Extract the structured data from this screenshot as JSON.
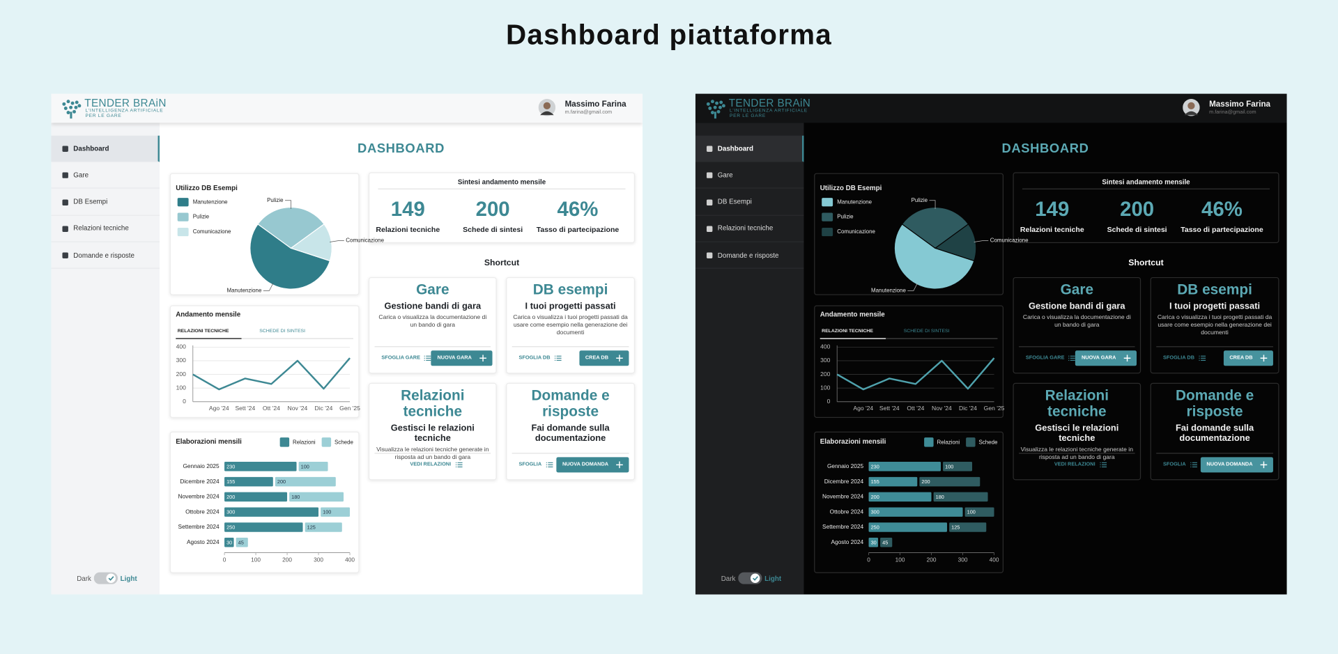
{
  "title": "Dashboard piattaforma",
  "header": {
    "logo": {
      "name": "TENDER BRAiN",
      "tagline": "L'INTELLIGENZA ARTIFICIALE",
      "tagline2": "PER LE GARE"
    },
    "user": {
      "name": "Massimo Farina",
      "email": "m.farina@gmail.com"
    }
  },
  "sidebar": {
    "items": [
      "Dashboard",
      "Gare",
      "DB Esempi",
      "Relazioni tecniche",
      "Domande e risposte"
    ],
    "active": 0,
    "toggle": {
      "dark": "Dark",
      "light": "Light"
    }
  },
  "page_title": "DASHBOARD",
  "summary": {
    "title": "Sintesi andamento mensile",
    "items": [
      {
        "value": "149",
        "label": "Relazioni tecniche"
      },
      {
        "value": "200",
        "label": "Schede di sintesi"
      },
      {
        "value": "46%",
        "label": "Tasso di partecipazione"
      }
    ]
  },
  "shortcuts": {
    "title": "Shortcut",
    "cards": [
      {
        "title": "Gare",
        "subtitle": "Gestione bandi di gara",
        "description": "Carica o visualizza la documentazione di un bando di gara",
        "link": "SFOGLIA GARE",
        "button": "NUOVA GARA"
      },
      {
        "title": "DB esempi",
        "subtitle": "I tuoi progetti passati",
        "description": "Carica o visualizza i tuoi progetti passati da usare come esempio nella generazione dei documenti",
        "link": "SFOGLIA DB",
        "button": "CREA DB"
      },
      {
        "title": "Relazioni tecniche",
        "subtitle": "Gestisci le relazioni tecniche",
        "description": "Visualizza le relazioni tecniche generate in risposta ad un bando di gara",
        "link": "VEDI RELAZIONI"
      },
      {
        "title": "Domande e risposte",
        "subtitle": "Fai domande sulla documentazione",
        "link": "SFOGLIA",
        "button": "NUOVA DOMANDA"
      }
    ]
  },
  "chart_data": [
    {
      "type": "pie",
      "title": "Utilizzo DB Esempi",
      "categories": [
        "Manutenzione",
        "Pulizie",
        "Comunicazione"
      ],
      "values": [
        55,
        30,
        15
      ],
      "colors": [
        "#2f7d89",
        "#97c8d0",
        "#c8e5e9"
      ],
      "colors_dark": [
        "#85c9d3",
        "#2f5b60",
        "#1f4245"
      ]
    },
    {
      "type": "line",
      "title": "Andamento mensile",
      "tabs": [
        "RELAZIONI TECNICHE",
        "SCHEDE DI SINTESI"
      ],
      "active_tab": 0,
      "categories": [
        null,
        "Ago '24",
        "Sett '24",
        "Ott '24",
        "Nov '24",
        "Dic '24",
        "Gen '25"
      ],
      "values": [
        200,
        90,
        170,
        130,
        300,
        95,
        320
      ],
      "ylim": [
        0,
        400
      ],
      "yticks": [
        0,
        100,
        200,
        300,
        400
      ],
      "color": "#3d8893",
      "color_dark": "#4fa2ad",
      "grid": true
    },
    {
      "type": "bar",
      "orientation": "horizontal",
      "stacked": true,
      "title": "Elaborazioni mensili",
      "categories": [
        "Gennaio 2025",
        "Dicembre 2024",
        "Novembre 2024",
        "Ottobre 2024",
        "Settembre 2024",
        "Agosto 2024"
      ],
      "series": [
        {
          "name": "Relazioni",
          "color": "#3d8893",
          "color_dark": "#3f8c97",
          "values": [
            230,
            155,
            200,
            300,
            250,
            30
          ]
        },
        {
          "name": "Schede",
          "color": "#9ccfd6",
          "color_dark": "#2f5c61",
          "values": [
            100,
            200,
            180,
            100,
            125,
            45
          ]
        }
      ],
      "xlim": [
        0,
        400
      ],
      "xticks": [
        0,
        100,
        200,
        300,
        400
      ]
    }
  ]
}
